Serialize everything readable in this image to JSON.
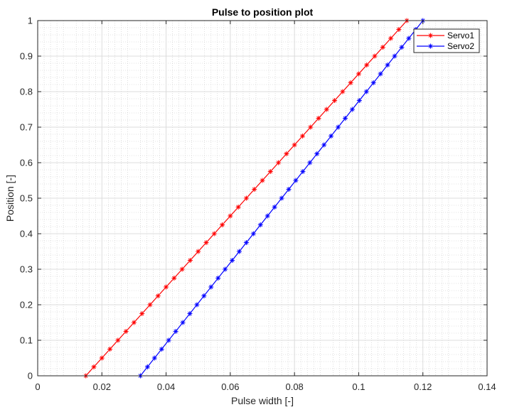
{
  "chart_data": {
    "type": "line",
    "title": "Pulse to position plot",
    "xlabel": "Pulse width [-]",
    "ylabel": "Position [-]",
    "xlim": [
      0,
      0.14
    ],
    "ylim": [
      0,
      1
    ],
    "xticks": [
      0,
      0.02,
      0.04,
      0.06,
      0.08,
      0.1,
      0.12,
      0.14
    ],
    "xtick_labels": [
      "0",
      "0.02",
      "0.04",
      "0.06",
      "0.08",
      "0.1",
      "0.12",
      "0.14"
    ],
    "yticks": [
      0,
      0.1,
      0.2,
      0.3,
      0.4,
      0.5,
      0.6,
      0.7,
      0.8,
      0.9,
      1
    ],
    "ytick_labels": [
      "0",
      "0.1",
      "0.2",
      "0.3",
      "0.4",
      "0.5",
      "0.6",
      "0.7",
      "0.8",
      "0.9",
      "1"
    ],
    "grid": true,
    "minor_grid": true,
    "legend_position": "top-right",
    "marker": "asterisk",
    "series": [
      {
        "name": "Servo1",
        "color": "#ff0000",
        "x_start": 0.015,
        "x_end": 0.115,
        "y_start": 0,
        "y_end": 1,
        "num_points": 41
      },
      {
        "name": "Servo2",
        "color": "#0000ff",
        "x_start": 0.032,
        "x_end": 0.12,
        "y_start": 0,
        "y_end": 1,
        "num_points": 41
      }
    ]
  }
}
